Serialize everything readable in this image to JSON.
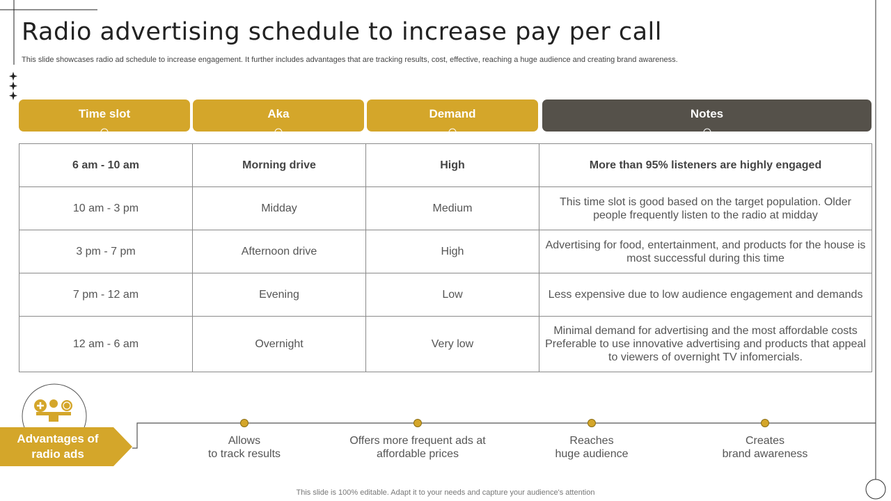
{
  "title": "Radio advertising schedule to increase pay per call",
  "subtitle": "This slide showcases radio ad schedule to increase engagement. It further includes advantages that are tracking results, cost, effective,  reaching a huge audience and creating brand awareness.",
  "colors": {
    "accent": "#D4A62A",
    "notes_header": "#55514A"
  },
  "headers": [
    "Time slot",
    "Aka",
    "Demand",
    "Notes"
  ],
  "rows": [
    [
      "6 am - 10 am",
      "Morning drive",
      "High",
      "More than 95% listeners are highly engaged"
    ],
    [
      "10 am - 3 pm",
      "Midday",
      "Medium",
      "This time slot is good based on the target population. Older people frequently  listen to the radio at midday"
    ],
    [
      "3 pm - 7 pm",
      "Afternoon drive",
      "High",
      "Advertising for food, entertainment,  and products for the house is most successful during this time"
    ],
    [
      "7 pm - 12 am",
      "Evening",
      "Low",
      "Less expensive due to low audience engagement and demands"
    ],
    [
      "12 am - 6 am",
      "Overnight",
      "Very low",
      "Minimal demand for advertising and the most affordable costs Preferable to use innovative advertising and products that appeal to viewers of overnight TV infomercials."
    ]
  ],
  "advantages": {
    "label": "Advantages of radio ads",
    "icon": "person-balance-icon",
    "items": [
      "Allows\nto track results",
      "Offers more frequent ads at\naffordable prices",
      "Reaches\nhuge audience",
      "Creates\nbrand awareness"
    ]
  },
  "footer": "This slide is 100% editable. Adapt it to your needs and capture your audience's attention"
}
